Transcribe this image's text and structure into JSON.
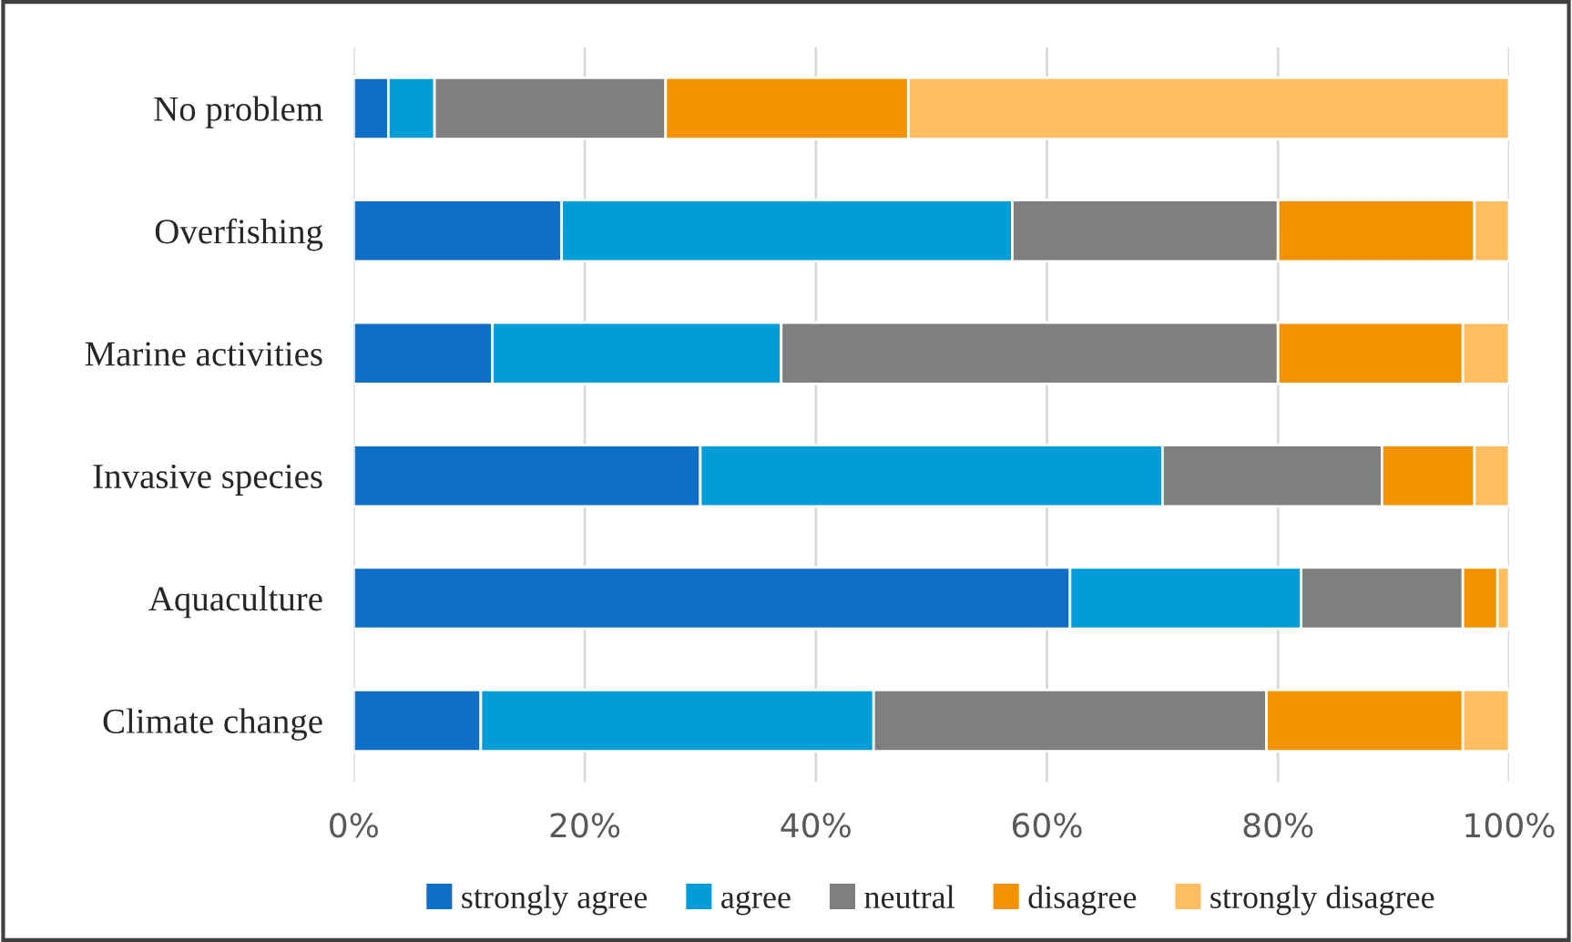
{
  "chart_data": {
    "type": "bar",
    "orientation": "horizontal",
    "stacked": true,
    "categories": [
      "No problem",
      "Overfishing",
      "Marine activities",
      "Invasive species",
      "Aquaculture",
      "Climate change"
    ],
    "series": [
      {
        "name": "strongly agree",
        "color": "#0f6fc6",
        "values": [
          3,
          18,
          12,
          30,
          62,
          11
        ]
      },
      {
        "name": "agree",
        "color": "#009dd9",
        "values": [
          4,
          39,
          25,
          40,
          20,
          34
        ]
      },
      {
        "name": "neutral",
        "color": "#7f7f7f",
        "values": [
          20,
          23,
          43,
          19,
          14,
          34
        ]
      },
      {
        "name": "disagree",
        "color": "#f39200",
        "values": [
          21,
          17,
          16,
          8,
          3,
          17
        ]
      },
      {
        "name": "strongly disagree",
        "color": "#ffbd62",
        "values": [
          52,
          3,
          4,
          3,
          1,
          4
        ]
      }
    ],
    "xlim": [
      0,
      100
    ],
    "xticks": [
      {
        "value": 0,
        "label": "0%"
      },
      {
        "value": 20,
        "label": "20%"
      },
      {
        "value": 40,
        "label": "40%"
      },
      {
        "value": 60,
        "label": "60%"
      },
      {
        "value": 80,
        "label": "80%"
      },
      {
        "value": 100,
        "label": "100%"
      }
    ],
    "grid": "x",
    "legend": "bottom"
  }
}
